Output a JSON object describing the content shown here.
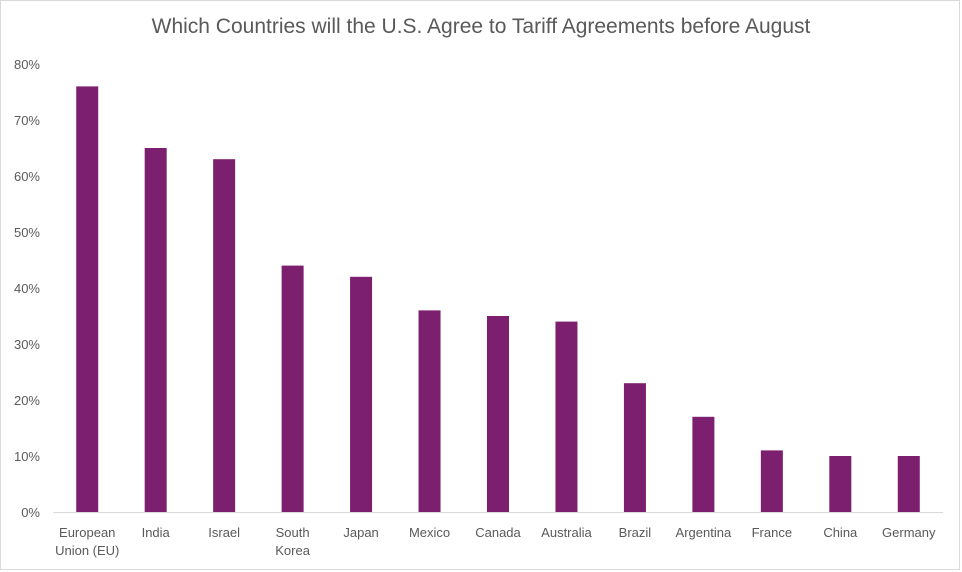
{
  "chart_data": {
    "type": "bar",
    "title": "Which Countries will the U.S. Agree to Tariff Agreements before August",
    "xlabel": "",
    "ylabel": "",
    "ylim": [
      0,
      80
    ],
    "yticks": [
      "0%",
      "10%",
      "20%",
      "30%",
      "40%",
      "50%",
      "60%",
      "70%",
      "80%"
    ],
    "categories": [
      [
        "European",
        "Union (EU)"
      ],
      [
        "India"
      ],
      [
        "Israel"
      ],
      [
        "South",
        "Korea"
      ],
      [
        "Japan"
      ],
      [
        "Mexico"
      ],
      [
        "Canada"
      ],
      [
        "Australia"
      ],
      [
        "Brazil"
      ],
      [
        "Argentina"
      ],
      [
        "France"
      ],
      [
        "China"
      ],
      [
        "Germany"
      ]
    ],
    "values": [
      76,
      65,
      63,
      44,
      42,
      36,
      35,
      34,
      23,
      17,
      11,
      10,
      10
    ],
    "bar_color": "#7b1f6e",
    "grid": false
  }
}
